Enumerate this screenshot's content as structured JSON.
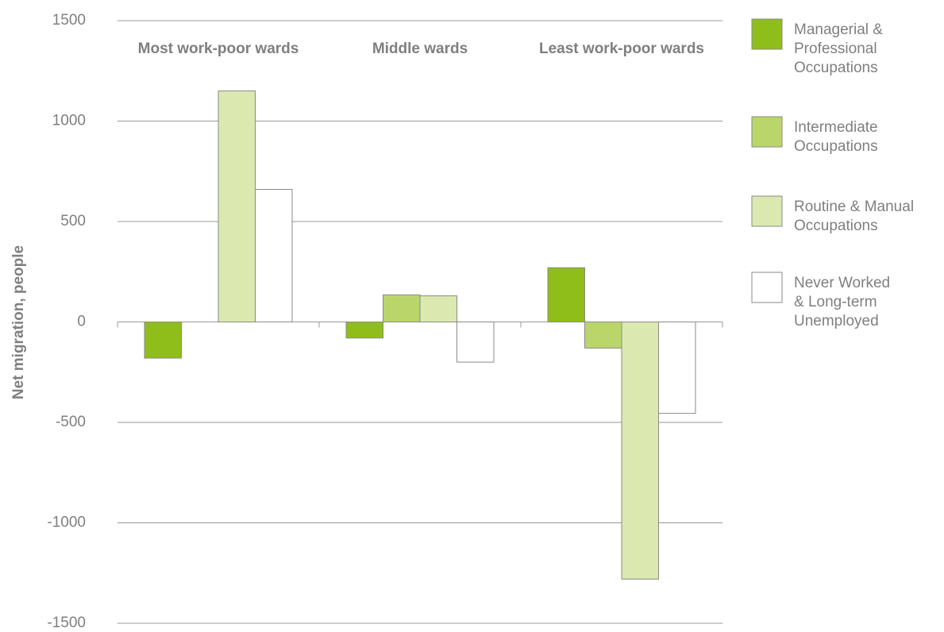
{
  "chart_data": {
    "type": "bar",
    "y_label": "Net migration, people",
    "categories": [
      "Most work-poor wards",
      "Middle wards",
      "Least work-poor wards"
    ],
    "series": [
      {
        "name": "Managerial &\nProfessional\nOccupations",
        "color": "#8fbe1a",
        "values": [
          -180,
          -80,
          270
        ]
      },
      {
        "name": "Intermediate\nOccupations",
        "color": "#bad66a",
        "values": [
          null,
          135,
          -130
        ]
      },
      {
        "name": "Routine & Manual\nOccupations",
        "color": "#dbe9b0",
        "values": [
          1150,
          130,
          -1280
        ]
      },
      {
        "name": "Never Worked\n& Long-term\nUnemployed",
        "color": "#ffffff",
        "values": [
          660,
          -200,
          -455
        ]
      }
    ],
    "ylim": [
      -1500,
      1500
    ],
    "yticks": [
      -1500,
      -1000,
      -500,
      0,
      500,
      1000,
      1500
    ],
    "grid": true,
    "legend": "right"
  }
}
